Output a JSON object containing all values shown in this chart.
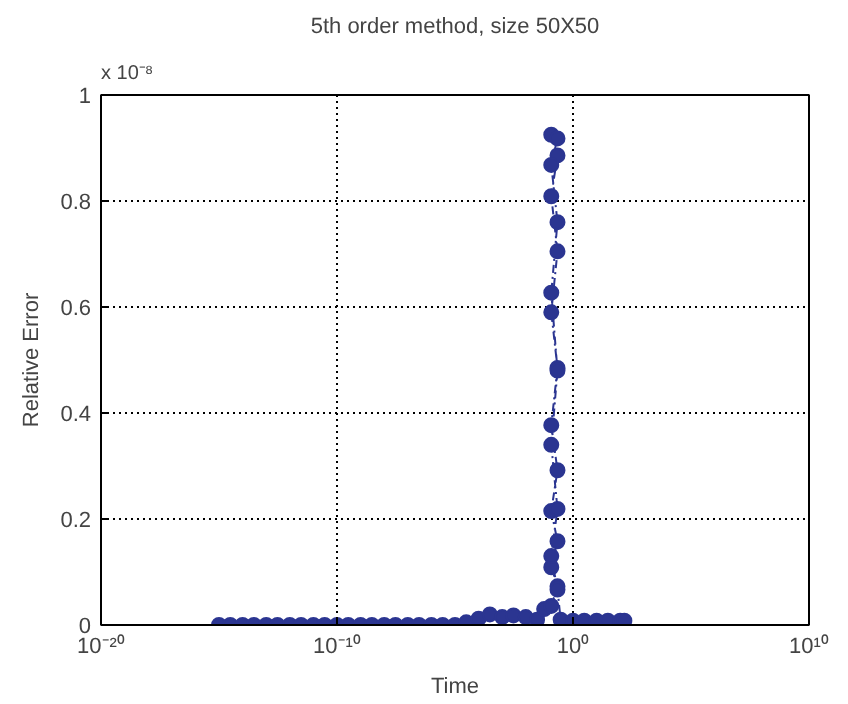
{
  "chart_data": {
    "type": "line",
    "title": "5th order method, size 50X50",
    "xlabel": "Time",
    "ylabel": "Relative Error",
    "annotations": [
      "x 10⁻⁸"
    ],
    "log": "x",
    "grid": true,
    "marker": "circle",
    "line_style": "dashed",
    "xlim": [
      1e-20,
      10000000000.0
    ],
    "ylim": [
      0,
      1
    ],
    "xticks": [
      {
        "value": 1e-20,
        "label": "10⁻²⁰"
      },
      {
        "value": 1e-10,
        "label": "10⁻¹⁰"
      },
      {
        "value": 1,
        "label": "10⁰"
      },
      {
        "value": 10000000000.0,
        "label": "10¹⁰"
      }
    ],
    "yticks": [
      0,
      0.2,
      0.4,
      0.6,
      0.8,
      1
    ],
    "series": [
      {
        "color": "#2b3591",
        "x": [
          1e-15,
          3e-15,
          1e-14,
          3e-14,
          1e-13,
          3e-13,
          1e-12,
          3e-12,
          1e-11,
          3e-11,
          1e-10,
          3e-10,
          1e-09,
          3e-09,
          1e-08,
          3e-08,
          1e-07,
          3e-07,
          1e-06,
          3e-06,
          1e-05,
          3e-05,
          0.0001,
          0.0003,
          0.001,
          0.003,
          0.01,
          0.03,
          0.06,
          0.12,
          0.22,
          0.12,
          0.22,
          0.12,
          0.22,
          0.12,
          0.22,
          0.12,
          0.22,
          0.12,
          0.22,
          0.12,
          0.22,
          0.12,
          0.22,
          0.12,
          0.22,
          0.12,
          0.22,
          0.12,
          0.22,
          0.3,
          1,
          3,
          10,
          30,
          100,
          150
        ],
        "values": [
          0,
          0,
          0,
          0,
          0,
          0,
          0,
          0,
          0,
          0,
          0,
          0,
          0,
          0,
          0,
          0,
          0,
          0,
          0,
          0,
          0,
          0.005,
          0.012,
          0.02,
          0.015,
          0.018,
          0.015,
          0.01,
          0.03,
          0.036,
          0.073,
          0.109,
          0.158,
          0.215,
          0.292,
          0.377,
          0.485,
          0.59,
          0.705,
          0.809,
          0.886,
          0.925,
          0.918,
          0.868,
          0.76,
          0.627,
          0.48,
          0.34,
          0.219,
          0.13,
          0.067,
          0.01,
          0.008,
          0.008,
          0.008,
          0.008,
          0.008,
          0.008
        ]
      }
    ]
  }
}
